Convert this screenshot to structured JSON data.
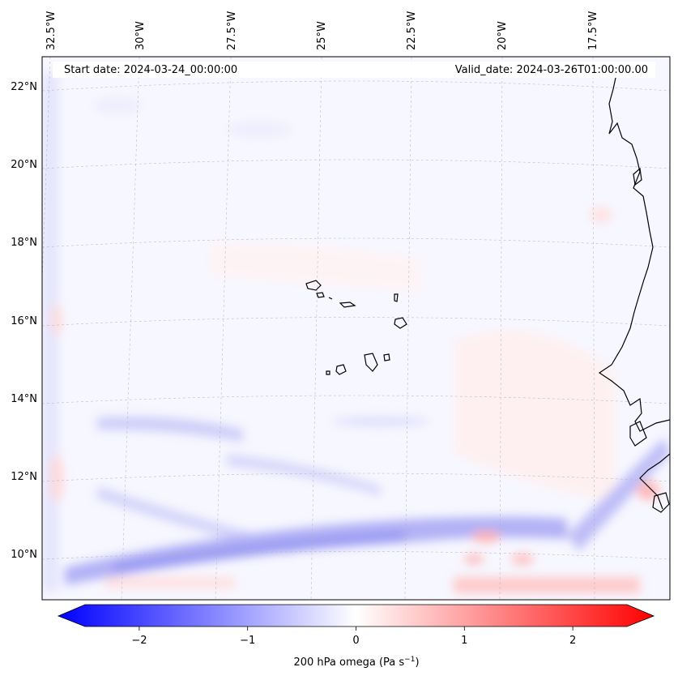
{
  "map": {
    "start_date": "Start date: 2024-03-24_00:00:00",
    "valid_date": "Valid_date: 2024-03-26T01:00:00.00",
    "lon_labels": [
      "32.5°W",
      "30°W",
      "27.5°W",
      "25°W",
      "22.5°W",
      "20°W",
      "17.5°W"
    ],
    "lat_labels": [
      "22°N",
      "20°N",
      "18°N",
      "16°N",
      "14°N",
      "12°N",
      "10°N"
    ],
    "coastline_color": "#000000",
    "gridline_color": "#b0b0b0"
  },
  "colorbar": {
    "label_text": "200 hPa omega (Pa s",
    "label_sup": "−1",
    "label_close": ")",
    "ticks": [
      "−2",
      "−1",
      "0",
      "1",
      "2"
    ],
    "tick_values": [
      -2,
      -1,
      0,
      1,
      2
    ],
    "range": [
      -2.5,
      2.5
    ],
    "color_min": "#0000ff",
    "color_mid": "#ffffff",
    "color_max": "#ff0000"
  }
}
